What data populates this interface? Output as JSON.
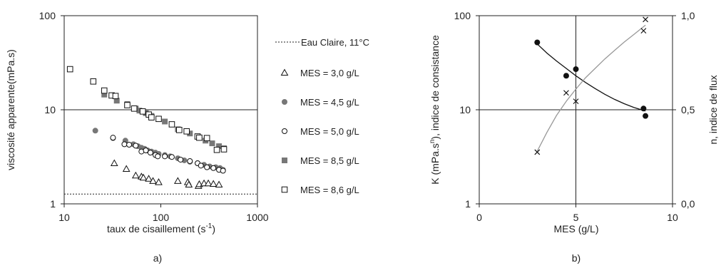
{
  "chart_data": [
    {
      "type": "scatter",
      "panel_label": "a)",
      "xlabel": "taux de cisaillement  (s",
      "xlabel_sup": "-1",
      "xlabel_end": ")",
      "ylabel": "viscosité apparente(mPa.s)",
      "x_scale": "log",
      "y_scale": "log",
      "xlim": [
        10,
        1000
      ],
      "ylim": [
        1,
        100
      ],
      "x_ticks": [
        {
          "v": 10,
          "label": "10"
        },
        {
          "v": 100,
          "label": "100"
        },
        {
          "v": 1000,
          "label": "1000"
        }
      ],
      "y_ticks": [
        {
          "v": 1,
          "label": "1"
        },
        {
          "v": 10,
          "label": "10"
        },
        {
          "v": 100,
          "label": "100"
        }
      ],
      "gridlines_y": [
        10
      ],
      "reference_line": {
        "name": "Eau Claire, 11°C",
        "y": 1.27,
        "style": "dotted"
      },
      "legend_position": "right",
      "series": [
        {
          "name": "MES = 3,0 g/L",
          "marker": "triangle-open",
          "points": [
            [
              33,
              2.7
            ],
            [
              44,
              2.35
            ],
            [
              55,
              2.0
            ],
            [
              63,
              1.95
            ],
            [
              66,
              1.9
            ],
            [
              75,
              1.85
            ],
            [
              83,
              1.75
            ],
            [
              95,
              1.7
            ],
            [
              150,
              1.75
            ],
            [
              190,
              1.7
            ],
            [
              195,
              1.6
            ],
            [
              245,
              1.55
            ],
            [
              250,
              1.62
            ],
            [
              280,
              1.65
            ],
            [
              310,
              1.65
            ],
            [
              350,
              1.63
            ],
            [
              400,
              1.6
            ]
          ]
        },
        {
          "name": "MES = 4,5 g/L",
          "marker": "circle-filled",
          "points": [
            [
              21,
              6.0
            ],
            [
              32,
              5.0
            ],
            [
              43,
              4.7
            ],
            [
              52,
              4.3
            ],
            [
              58,
              4.1
            ],
            [
              63,
              3.95
            ],
            [
              68,
              3.85
            ],
            [
              73,
              3.7
            ],
            [
              80,
              3.6
            ],
            [
              88,
              3.5
            ],
            [
              95,
              3.4
            ],
            [
              110,
              3.3
            ],
            [
              125,
              3.2
            ],
            [
              150,
              3.05
            ],
            [
              175,
              2.9
            ],
            [
              200,
              2.8
            ],
            [
              240,
              2.7
            ],
            [
              280,
              2.6
            ],
            [
              320,
              2.5
            ],
            [
              370,
              2.45
            ],
            [
              410,
              2.4
            ],
            [
              440,
              2.3
            ]
          ]
        },
        {
          "name": "MES = 5,0 g/L",
          "marker": "circle-open",
          "points": [
            [
              32,
              5.05
            ],
            [
              42,
              4.3
            ],
            [
              47,
              4.25
            ],
            [
              55,
              4.15
            ],
            [
              63,
              3.6
            ],
            [
              70,
              3.7
            ],
            [
              78,
              3.5
            ],
            [
              88,
              3.3
            ],
            [
              93,
              3.2
            ],
            [
              110,
              3.2
            ],
            [
              130,
              3.15
            ],
            [
              160,
              2.95
            ],
            [
              200,
              2.85
            ],
            [
              240,
              2.7
            ],
            [
              260,
              2.55
            ],
            [
              300,
              2.45
            ],
            [
              350,
              2.4
            ],
            [
              400,
              2.3
            ],
            [
              440,
              2.25
            ]
          ]
        },
        {
          "name": "MES = 8,5 g/L",
          "marker": "square-filled",
          "points": [
            [
              26,
              14.5
            ],
            [
              35,
              12.5
            ],
            [
              45,
              11.5
            ],
            [
              55,
              10.3
            ],
            [
              60,
              9.8
            ],
            [
              70,
              9.2
            ],
            [
              80,
              8.6
            ],
            [
              95,
              8.0
            ],
            [
              110,
              7.5
            ],
            [
              150,
              6.2
            ],
            [
              200,
              5.6
            ],
            [
              240,
              5.2
            ],
            [
              290,
              4.7
            ],
            [
              340,
              4.4
            ],
            [
              400,
              4.1
            ],
            [
              450,
              3.9
            ]
          ]
        },
        {
          "name": "MES = 8,6 g/L",
          "marker": "square-open",
          "points": [
            [
              11.5,
              27.0
            ],
            [
              20,
              20.0
            ],
            [
              26,
              16.0
            ],
            [
              31,
              14.2
            ],
            [
              34,
              14.0
            ],
            [
              45,
              11.2
            ],
            [
              53,
              10.3
            ],
            [
              65,
              9.6
            ],
            [
              75,
              8.9
            ],
            [
              80,
              8.3
            ],
            [
              95,
              8.0
            ],
            [
              130,
              7.0
            ],
            [
              155,
              6.1
            ],
            [
              185,
              5.9
            ],
            [
              240,
              5.2
            ],
            [
              250,
              5.05
            ],
            [
              300,
              5.0
            ],
            [
              380,
              3.75
            ],
            [
              450,
              3.8
            ]
          ]
        }
      ]
    },
    {
      "type": "scatter",
      "panel_label": "b)",
      "xlabel": "MES (g/L)",
      "ylabel": "K (mPa.s",
      "ylabel_sup": "n",
      "ylabel_end": "), indice de consistance",
      "y2label": "n, indice de flux",
      "y_scale": "log",
      "xlim": [
        0,
        10
      ],
      "ylim": [
        1,
        100
      ],
      "y2lim": [
        0,
        1
      ],
      "x_ticks": [
        {
          "v": 0,
          "label": "0"
        },
        {
          "v": 5,
          "label": "5"
        },
        {
          "v": 10,
          "label": "10"
        }
      ],
      "y_ticks": [
        {
          "v": 1,
          "label": "1"
        },
        {
          "v": 10,
          "label": "10"
        },
        {
          "v": 100,
          "label": "100"
        }
      ],
      "y2_ticks": [
        {
          "v": 0,
          "label": "0,0"
        },
        {
          "v": 0.5,
          "label": "0,5"
        },
        {
          "v": 1,
          "label": "1,0"
        }
      ],
      "gridlines_x": [
        5
      ],
      "gridlines_y": [
        10
      ],
      "series": [
        {
          "marker": "circle-filled",
          "axis": "left",
          "points": [
            [
              3.0,
              52
            ],
            [
              4.5,
              23
            ],
            [
              5.0,
              27
            ],
            [
              8.5,
              10.3
            ],
            [
              8.6,
              8.6
            ]
          ]
        },
        {
          "marker": "x",
          "axis": "right",
          "points": [
            [
              3.0,
              0.275
            ],
            [
              4.5,
              0.59
            ],
            [
              5.0,
              0.545
            ],
            [
              8.5,
              0.92
            ],
            [
              8.6,
              0.98
            ]
          ]
        }
      ],
      "fit_curves": [
        {
          "axis": "left",
          "color": "#111111",
          "points": [
            [
              3.0,
              50
            ],
            [
              3.5,
              40
            ],
            [
              4.0,
              33
            ],
            [
              4.5,
              27.5
            ],
            [
              5.0,
              23
            ],
            [
              5.5,
              19.5
            ],
            [
              6.0,
              16.8
            ],
            [
              6.5,
              14.6
            ],
            [
              7.0,
              12.9
            ],
            [
              7.5,
              11.6
            ],
            [
              8.0,
              10.6
            ],
            [
              8.6,
              9.7
            ]
          ]
        },
        {
          "axis": "right",
          "color": "#999999",
          "points": [
            [
              3.0,
              0.28
            ],
            [
              3.5,
              0.38
            ],
            [
              4.0,
              0.47
            ],
            [
              4.5,
              0.545
            ],
            [
              5.0,
              0.61
            ],
            [
              5.5,
              0.67
            ],
            [
              6.0,
              0.72
            ],
            [
              6.5,
              0.77
            ],
            [
              7.0,
              0.815
            ],
            [
              7.5,
              0.86
            ],
            [
              8.0,
              0.9
            ],
            [
              8.6,
              0.95
            ]
          ]
        }
      ]
    }
  ]
}
